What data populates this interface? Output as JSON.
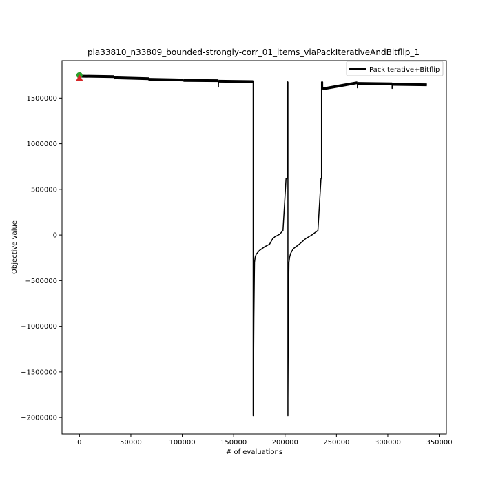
{
  "chart_data": {
    "type": "line",
    "title": "pla33810_n33809_bounded-strongly-corr_01_items_viaPackIterativeAndBitflip_1",
    "xlabel": "# of evaluations",
    "ylabel": "Objective value",
    "xlim": [
      -17000,
      357000
    ],
    "ylim": [
      -2180000,
      1910000
    ],
    "xticks": [
      0,
      50000,
      100000,
      150000,
      200000,
      250000,
      300000,
      350000
    ],
    "xtick_labels": [
      "0",
      "50000",
      "100000",
      "150000",
      "200000",
      "250000",
      "300000",
      "350000"
    ],
    "yticks": [
      -2000000,
      -1500000,
      -1000000,
      -500000,
      0,
      500000,
      1000000,
      1500000
    ],
    "ytick_labels": [
      "−2000000",
      "−1500000",
      "−1000000",
      "−500000",
      "0",
      "500000",
      "1000000",
      "1500000"
    ],
    "grid": false,
    "legend_position": "top-right",
    "series": [
      {
        "name": "PackIterative+Bitflip",
        "color": "#000000",
        "x": [
          0,
          33800,
          33800,
          33900,
          34000,
          67600,
          67600,
          67700,
          67800,
          101400,
          101400,
          101500,
          101600,
          135200,
          135200,
          135300,
          135400,
          169000,
          169000,
          169300,
          169700,
          170300,
          171000,
          172000,
          175000,
          180000,
          185000,
          188000,
          190000,
          195000,
          198000,
          201000,
          202000,
          202000,
          202800,
          202800,
          202800,
          203200,
          203800,
          204500,
          205500,
          208000,
          214000,
          220000,
          223000,
          226000,
          232000,
          235000,
          235500,
          235500,
          236600,
          236600,
          236600,
          270400,
          270400,
          270500,
          270600,
          304200,
          304200,
          304300,
          304400,
          338000
        ],
        "y": [
          1740000,
          1735000,
          1710000,
          1722000,
          1722000,
          1712000,
          1695000,
          1705000,
          1705000,
          1698000,
          1685000,
          1693000,
          1693000,
          1690000,
          1620000,
          1682000,
          1685000,
          1680000,
          -1980000,
          -1600000,
          -900000,
          -300000,
          -240000,
          -210000,
          -170000,
          -130000,
          -100000,
          -40000,
          -20000,
          10000,
          50000,
          620000,
          620000,
          1680000,
          1675000,
          -1980000,
          -1800000,
          -900000,
          -300000,
          -240000,
          -200000,
          -150000,
          -100000,
          -40000,
          -20000,
          0,
          50000,
          620000,
          620000,
          1675000,
          1675000,
          1670000,
          1600000,
          1668000,
          1612000,
          1660000,
          1660000,
          1655000,
          1605000,
          1650000,
          1650000,
          1645000
        ]
      }
    ],
    "markers": [
      {
        "name": "best-start",
        "x": 0,
        "y": 1750000,
        "color": "#2ca02c",
        "shape": "circle"
      },
      {
        "name": "start-point",
        "x": 0,
        "y": 1720000,
        "color": "#d62728",
        "shape": "triangle"
      }
    ]
  }
}
